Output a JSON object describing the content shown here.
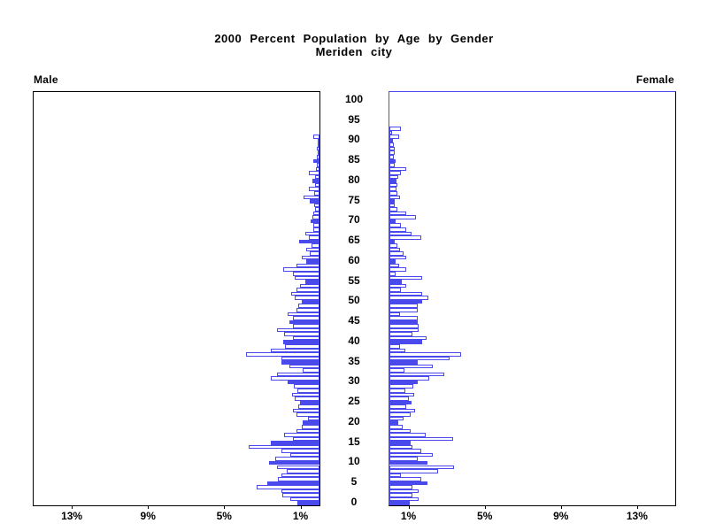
{
  "title": {
    "line1": "2000 Percent Population by Age by Gender",
    "line2": "Meriden city"
  },
  "panel_labels": {
    "left": "Male",
    "right": "Female"
  },
  "colors": {
    "bar_blue": "#4949ec",
    "axis_black": "#000000",
    "outline_bar_fill": "#ffffff"
  },
  "chart_data": {
    "type": "bar",
    "subtype": "population-pyramid",
    "title": "2000 Percent Population by Age by Gender",
    "subtitle": "Meriden city",
    "xlabel_unit": "%",
    "axis_max_percent": 15,
    "male_tick_labels": [
      "13%",
      "9%",
      "5%",
      "1%"
    ],
    "male_tick_percents": [
      13,
      9,
      5,
      1
    ],
    "female_tick_labels": [
      "1%",
      "5%",
      "9%",
      "13%"
    ],
    "female_tick_percents": [
      1,
      5,
      9,
      13
    ],
    "age_tick_step": 5,
    "age_tick_labels": [
      "0",
      "5",
      "10",
      "15",
      "20",
      "25",
      "30",
      "35",
      "40",
      "45",
      "50",
      "55",
      "60",
      "65",
      "70",
      "75",
      "80",
      "85",
      "90",
      "95",
      "100"
    ],
    "ages": "0-100 single years, solid bars at multiples of 5",
    "series": [
      {
        "name": "Male",
        "values": [
          1.16,
          1.55,
          1.94,
          2.0,
          3.3,
          2.75,
          2.2,
          2.02,
          1.7,
          2.25,
          2.65,
          2.3,
          1.52,
          2.0,
          3.7,
          2.56,
          1.4,
          1.86,
          1.2,
          0.93,
          0.88,
          0.6,
          1.2,
          1.4,
          1.1,
          1.02,
          1.3,
          1.42,
          1.14,
          1.35,
          1.69,
          2.54,
          2.23,
          0.88,
          1.6,
          2.0,
          2.0,
          3.86,
          2.54,
          1.8,
          1.9,
          1.4,
          1.86,
          2.23,
          1.4,
          1.6,
          1.4,
          1.65,
          1.2,
          1.1,
          0.93,
          1.3,
          1.5,
          1.2,
          1.0,
          0.75,
          1.3,
          1.4,
          1.9,
          1.2,
          0.7,
          0.95,
          0.51,
          0.72,
          0.4,
          1.05,
          0.55,
          0.75,
          0.31,
          0.33,
          0.47,
          0.35,
          0.31,
          0.25,
          0.28,
          0.51,
          0.82,
          0.3,
          0.54,
          0.25,
          0.35,
          0.25,
          0.54,
          0.2,
          0.15,
          0.31,
          0.15,
          0.1,
          0.12,
          0.1,
          0.1,
          0.31,
          0,
          0,
          0,
          0,
          0,
          0,
          0,
          0,
          0
        ]
      },
      {
        "name": "Female",
        "values": [
          1.06,
          1.53,
          1.22,
          1.53,
          1.22,
          1.99,
          1.68,
          0.6,
          2.57,
          3.39,
          1.99,
          1.48,
          2.26,
          1.68,
          1.22,
          1.13,
          3.34,
          1.9,
          1.1,
          0.7,
          0.45,
          0.75,
          1.1,
          1.35,
          0.9,
          1.15,
          1.0,
          1.3,
          0.85,
          1.25,
          1.48,
          2.1,
          2.87,
          0.78,
          2.26,
          1.48,
          3.14,
          3.75,
          0.84,
          0.57,
          1.73,
          1.96,
          1.19,
          1.55,
          1.55,
          1.5,
          1.5,
          0.57,
          1.5,
          1.5,
          1.71,
          2.02,
          1.71,
          0.6,
          0.88,
          0.65,
          1.71,
          0.31,
          0.88,
          0.5,
          0.31,
          0.9,
          0.75,
          0.55,
          0.4,
          0.29,
          1.68,
          1.17,
          0.86,
          0.6,
          0.31,
          1.4,
          0.86,
          0.44,
          0.26,
          0.3,
          0.55,
          0.4,
          0.35,
          0.4,
          0.35,
          0.45,
          0.6,
          0.9,
          0.28,
          0.31,
          0.25,
          0.3,
          0.28,
          0.25,
          0.2,
          0.5,
          0.15,
          0.6,
          0,
          0,
          0,
          0,
          0,
          0,
          0
        ]
      }
    ]
  }
}
